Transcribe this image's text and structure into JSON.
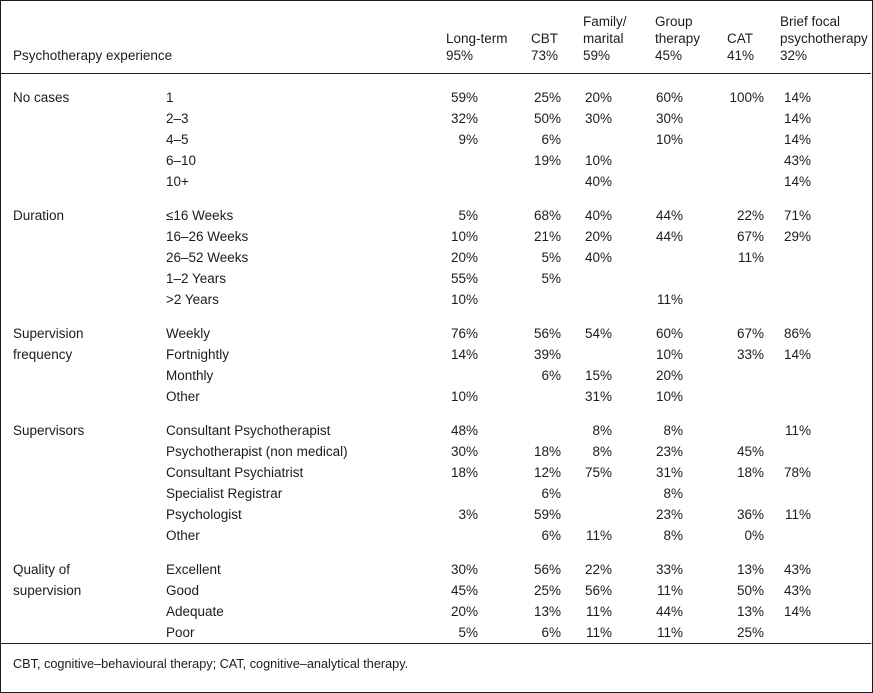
{
  "header": {
    "row_label": "Psychotherapy experience",
    "columns": [
      {
        "line1": "",
        "line2": "Long-term",
        "value": "95%"
      },
      {
        "line1": "",
        "line2": "CBT",
        "value": "73%"
      },
      {
        "line1": "Family/",
        "line2": "marital",
        "value": "59%"
      },
      {
        "line1": "Group",
        "line2": "therapy",
        "value": "45%"
      },
      {
        "line1": "",
        "line2": "CAT",
        "value": "41%"
      },
      {
        "line1": "Brief focal",
        "line2": "psychotherapy",
        "value": "32%"
      }
    ]
  },
  "sections": [
    {
      "label": "No cases",
      "rows": [
        {
          "sub": "1",
          "values": [
            "59%",
            "25%",
            "20%",
            "60%",
            "100%",
            "14%"
          ]
        },
        {
          "sub": "2–3",
          "values": [
            "32%",
            "50%",
            "30%",
            "30%",
            "",
            "14%"
          ]
        },
        {
          "sub": "4–5",
          "values": [
            "9%",
            "6%",
            "",
            "10%",
            "",
            "14%"
          ]
        },
        {
          "sub": "6–10",
          "values": [
            "",
            "19%",
            "10%",
            "",
            "",
            "43%"
          ]
        },
        {
          "sub": "10+",
          "values": [
            "",
            "",
            "40%",
            "",
            "",
            "14%"
          ]
        }
      ]
    },
    {
      "label": "Duration",
      "rows": [
        {
          "sub": "≤16 Weeks",
          "values": [
            "5%",
            "68%",
            "40%",
            "44%",
            "22%",
            "71%"
          ]
        },
        {
          "sub": "16–26 Weeks",
          "values": [
            "10%",
            "21%",
            "20%",
            "44%",
            "67%",
            "29%"
          ]
        },
        {
          "sub": "26–52 Weeks",
          "values": [
            "20%",
            "5%",
            "40%",
            "",
            "11%",
            ""
          ]
        },
        {
          "sub": "1–2 Years",
          "values": [
            "55%",
            "5%",
            "",
            "",
            "",
            ""
          ]
        },
        {
          "sub": ">2 Years",
          "values": [
            "10%",
            "",
            "",
            "11%",
            "",
            ""
          ]
        }
      ]
    },
    {
      "label": "Supervision frequency",
      "rows": [
        {
          "sub": "Weekly",
          "values": [
            "76%",
            "56%",
            "54%",
            "60%",
            "67%",
            "86%"
          ]
        },
        {
          "sub": "Fortnightly",
          "values": [
            "14%",
            "39%",
            "",
            "10%",
            "33%",
            "14%"
          ]
        },
        {
          "sub": "Monthly",
          "values": [
            "",
            "6%",
            "15%",
            "20%",
            "",
            ""
          ]
        },
        {
          "sub": "Other",
          "values": [
            "10%",
            "",
            "31%",
            "10%",
            "",
            ""
          ]
        }
      ]
    },
    {
      "label": "Supervisors",
      "rows": [
        {
          "sub": "Consultant Psychotherapist",
          "values": [
            "48%",
            "",
            "8%",
            "8%",
            "",
            "11%"
          ]
        },
        {
          "sub": "Psychotherapist (non medical)",
          "values": [
            "30%",
            "18%",
            "8%",
            "23%",
            "45%",
            ""
          ]
        },
        {
          "sub": "Consultant Psychiatrist",
          "values": [
            "18%",
            "12%",
            "75%",
            "31%",
            "18%",
            "78%"
          ]
        },
        {
          "sub": "Specialist Registrar",
          "values": [
            "",
            "6%",
            "",
            "8%",
            "",
            ""
          ]
        },
        {
          "sub": "Psychologist",
          "values": [
            "3%",
            "59%",
            "",
            "23%",
            "36%",
            "11%"
          ]
        },
        {
          "sub": "Other",
          "values": [
            "",
            "6%",
            "11%",
            "8%",
            "0%",
            ""
          ]
        }
      ]
    },
    {
      "label": "Quality of supervision",
      "rows": [
        {
          "sub": "Excellent",
          "values": [
            "30%",
            "56%",
            "22%",
            "33%",
            "13%",
            "43%"
          ]
        },
        {
          "sub": "Good",
          "values": [
            "45%",
            "25%",
            "56%",
            "11%",
            "50%",
            "43%"
          ]
        },
        {
          "sub": "Adequate",
          "values": [
            "20%",
            "13%",
            "11%",
            "44%",
            "13%",
            "14%"
          ]
        },
        {
          "sub": "Poor",
          "values": [
            "5%",
            "6%",
            "11%",
            "11%",
            "25%",
            ""
          ]
        }
      ]
    }
  ],
  "footnote": "CBT, cognitive–behavioural therapy; CAT, cognitive–analytical therapy."
}
